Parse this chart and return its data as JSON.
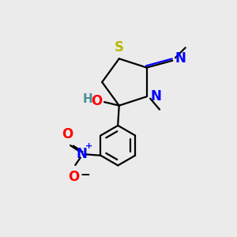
{
  "background_color": "#ebebeb",
  "atom_colors": {
    "S": "#b8b800",
    "N": "#0000ff",
    "O": "#ff0000",
    "H": "#4a9090",
    "C": "#000000"
  },
  "figsize": [
    3.0,
    3.0
  ],
  "dpi": 100,
  "lw": 1.6,
  "lw_ring": 1.5
}
